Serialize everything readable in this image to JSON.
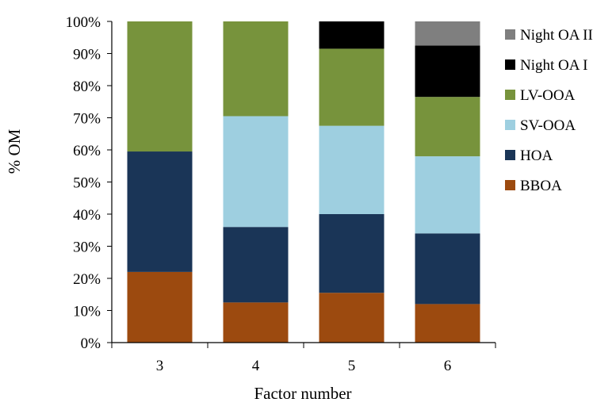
{
  "chart_data": {
    "type": "bar",
    "stacked": true,
    "normalized": true,
    "title": "",
    "xlabel": "Factor number",
    "ylabel": "% OM",
    "ylim": [
      0,
      100
    ],
    "yticks": [
      "0%",
      "10%",
      "20%",
      "30%",
      "40%",
      "50%",
      "60%",
      "70%",
      "80%",
      "90%",
      "100%"
    ],
    "categories": [
      "3",
      "4",
      "5",
      "6"
    ],
    "series": [
      {
        "name": "BBOA",
        "color": "#9c4a0f",
        "values": [
          22,
          12.5,
          15.5,
          12
        ]
      },
      {
        "name": "HOA",
        "color": "#1a3557",
        "values": [
          37.5,
          23.5,
          24.5,
          22
        ]
      },
      {
        "name": "SV-OOA",
        "color": "#9ecfe0",
        "values": [
          0,
          34.5,
          27.5,
          24
        ]
      },
      {
        "name": "LV-OOA",
        "color": "#77933c",
        "values": [
          40.5,
          29.5,
          24,
          18.5
        ]
      },
      {
        "name": "Night OA I",
        "color": "#000000",
        "values": [
          0,
          0,
          8.5,
          16
        ]
      },
      {
        "name": "Night OA II",
        "color": "#7f7f7f",
        "values": [
          0,
          0,
          0,
          7.5
        ]
      }
    ],
    "legend_order": [
      "Night OA II",
      "Night OA I",
      "LV-OOA",
      "SV-OOA",
      "HOA",
      "BBOA"
    ],
    "legend_position": "right",
    "grid": false
  }
}
